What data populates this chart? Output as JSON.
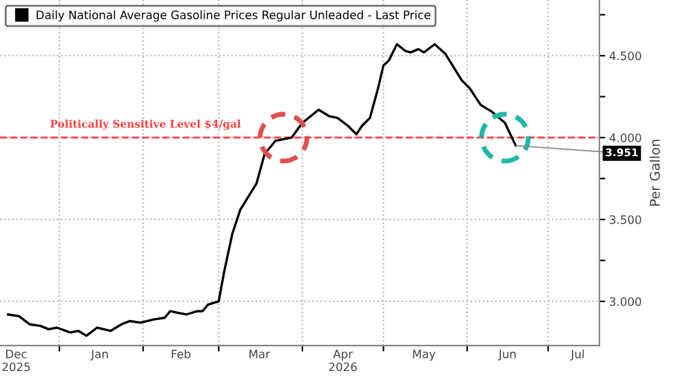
{
  "chart_data": {
    "type": "line",
    "ylabel": "Per Gallon",
    "legend": "top left",
    "grid": true,
    "marker": "none",
    "line_style": "solid",
    "xlim": [
      "2025-12-10",
      "2026-07-20"
    ],
    "ylim": [
      2.73,
      4.84
    ],
    "xticks": [
      {
        "value": "2026-01-01",
        "label": null
      },
      {
        "value": "2026-02-01",
        "label": null
      },
      {
        "value": "2026-03-01",
        "label": null
      },
      {
        "value": "2026-04-01",
        "label": null
      },
      {
        "value": "2026-05-01",
        "label": null
      },
      {
        "value": "2026-06-01",
        "label": null
      },
      {
        "value": "2026-07-01",
        "label": null
      },
      {
        "value": "2025-12-16",
        "label": "Dec\n2025"
      },
      {
        "value": "2026-01-16",
        "label": "Jan"
      },
      {
        "value": "2026-02-15",
        "label": "Feb"
      },
      {
        "value": "2026-03-16",
        "label": "Mar"
      },
      {
        "value": "2026-04-16",
        "label": "Apr\n2026"
      },
      {
        "value": "2026-05-16",
        "label": "May"
      },
      {
        "value": "2026-06-16",
        "label": "Jun"
      },
      {
        "value": "2026-07-12",
        "label": "Jul"
      }
    ],
    "yticks": [
      {
        "value": 3.0,
        "label": "3.000"
      },
      {
        "value": 3.25,
        "label": null
      },
      {
        "value": 3.5,
        "label": "3.500"
      },
      {
        "value": 3.75,
        "label": null
      },
      {
        "value": 4.0,
        "label": "4.000"
      },
      {
        "value": 4.25,
        "label": null
      },
      {
        "value": 4.5,
        "label": "4.500"
      },
      {
        "value": 4.75,
        "label": null
      }
    ],
    "series": [
      {
        "name": "Daily National Average Gasoline Prices Regular Unleaded - Last Price",
        "color": "#000000",
        "x": [
          "2025-12-13",
          "2025-12-17",
          "2025-12-21",
          "2025-12-25",
          "2025-12-28",
          "2025-12-31",
          "2026-01-05",
          "2026-01-08",
          "2026-01-11",
          "2026-01-15",
          "2026-01-20",
          "2026-01-24",
          "2026-01-27",
          "2026-01-31",
          "2026-02-05",
          "2026-02-09",
          "2026-02-11",
          "2026-02-14",
          "2026-02-17",
          "2026-02-21",
          "2026-02-23",
          "2026-02-25",
          "2026-03-01",
          "2026-03-03",
          "2026-03-06",
          "2026-03-09",
          "2026-03-12",
          "2026-03-15",
          "2026-03-18",
          "2026-03-22",
          "2026-03-28",
          "2026-04-01",
          "2026-04-07",
          "2026-04-11",
          "2026-04-14",
          "2026-04-18",
          "2026-04-21",
          "2026-04-23",
          "2026-04-26",
          "2026-04-29",
          "2026-05-01",
          "2026-05-03",
          "2026-05-06",
          "2026-05-09",
          "2026-05-11",
          "2026-05-14",
          "2026-05-16",
          "2026-05-20",
          "2026-05-24",
          "2026-05-30",
          "2026-06-02",
          "2026-06-06",
          "2026-06-10",
          "2026-06-15",
          "2026-06-19"
        ],
        "values": [
          2.92,
          2.91,
          2.86,
          2.85,
          2.83,
          2.84,
          2.81,
          2.82,
          2.79,
          2.84,
          2.82,
          2.86,
          2.88,
          2.87,
          2.89,
          2.9,
          2.94,
          2.93,
          2.92,
          2.94,
          2.94,
          2.98,
          3.0,
          3.18,
          3.41,
          3.56,
          3.64,
          3.72,
          3.9,
          3.98,
          4.0,
          4.09,
          4.17,
          4.13,
          4.12,
          4.07,
          4.02,
          4.07,
          4.12,
          4.3,
          4.44,
          4.47,
          4.57,
          4.53,
          4.52,
          4.54,
          4.52,
          4.57,
          4.51,
          4.35,
          4.3,
          4.2,
          4.16,
          4.09,
          3.951
        ]
      }
    ],
    "ref_lines": [
      {
        "axis": "y",
        "value": 4.0,
        "label": "Politically Sensitive Level $4/gal",
        "color": "#ff4040",
        "line_style": "dashed"
      }
    ],
    "annotations": [
      {
        "text": "3.951",
        "x": "2026-06-19",
        "y": 3.951
      }
    ]
  }
}
